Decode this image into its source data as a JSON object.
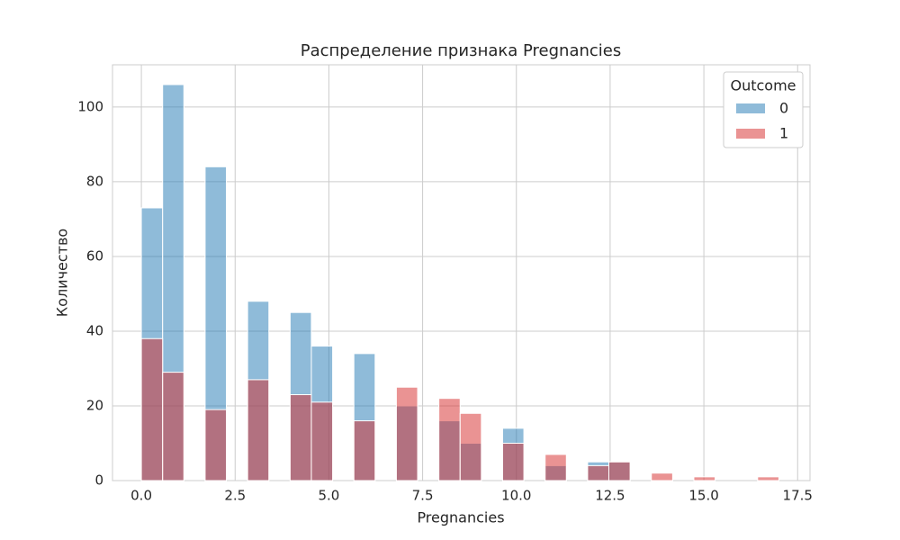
{
  "chart_data": {
    "type": "histogram",
    "title": "Распределение признака Pregnancies",
    "xlabel": "Pregnancies",
    "ylabel": "Количество",
    "legend_title": "Outcome",
    "legend": "upper right",
    "grid": true,
    "bins": [
      0,
      0.567,
      1.133,
      1.7,
      2.267,
      2.833,
      3.4,
      3.967,
      4.533,
      5.1,
      5.667,
      6.233,
      6.8,
      7.367,
      7.933,
      8.5,
      9.067,
      9.633,
      10.2,
      10.767,
      11.333,
      11.9,
      12.467,
      13.033,
      13.6,
      14.167,
      14.733,
      15.3,
      15.867,
      16.433,
      17
    ],
    "series": [
      {
        "name": "0",
        "color": "#1f77b4",
        "values": [
          73,
          106,
          0,
          84,
          0,
          48,
          0,
          45,
          36,
          0,
          34,
          0,
          20,
          0,
          16,
          10,
          0,
          14,
          0,
          4,
          0,
          5,
          5,
          0,
          0,
          0,
          0,
          0,
          0,
          0
        ]
      },
      {
        "name": "1",
        "color": "#d62728",
        "values": [
          38,
          29,
          0,
          19,
          0,
          27,
          0,
          23,
          21,
          0,
          16,
          0,
          25,
          0,
          22,
          18,
          0,
          10,
          0,
          7,
          0,
          4,
          5,
          0,
          2,
          0,
          1,
          0,
          0,
          1
        ]
      }
    ],
    "xlim": [
      -0.77,
      17.83
    ],
    "ylim": [
      0,
      111.3
    ],
    "xticks": [
      {
        "value": 0,
        "label": "0.0"
      },
      2.5,
      {
        "value": 5,
        "label": "5.0"
      },
      7.5,
      {
        "value": 10,
        "label": "10.0"
      },
      12.5,
      {
        "value": 15,
        "label": "15.0"
      },
      17.5
    ],
    "yticks": [
      0,
      20,
      40,
      60,
      80,
      100
    ]
  }
}
